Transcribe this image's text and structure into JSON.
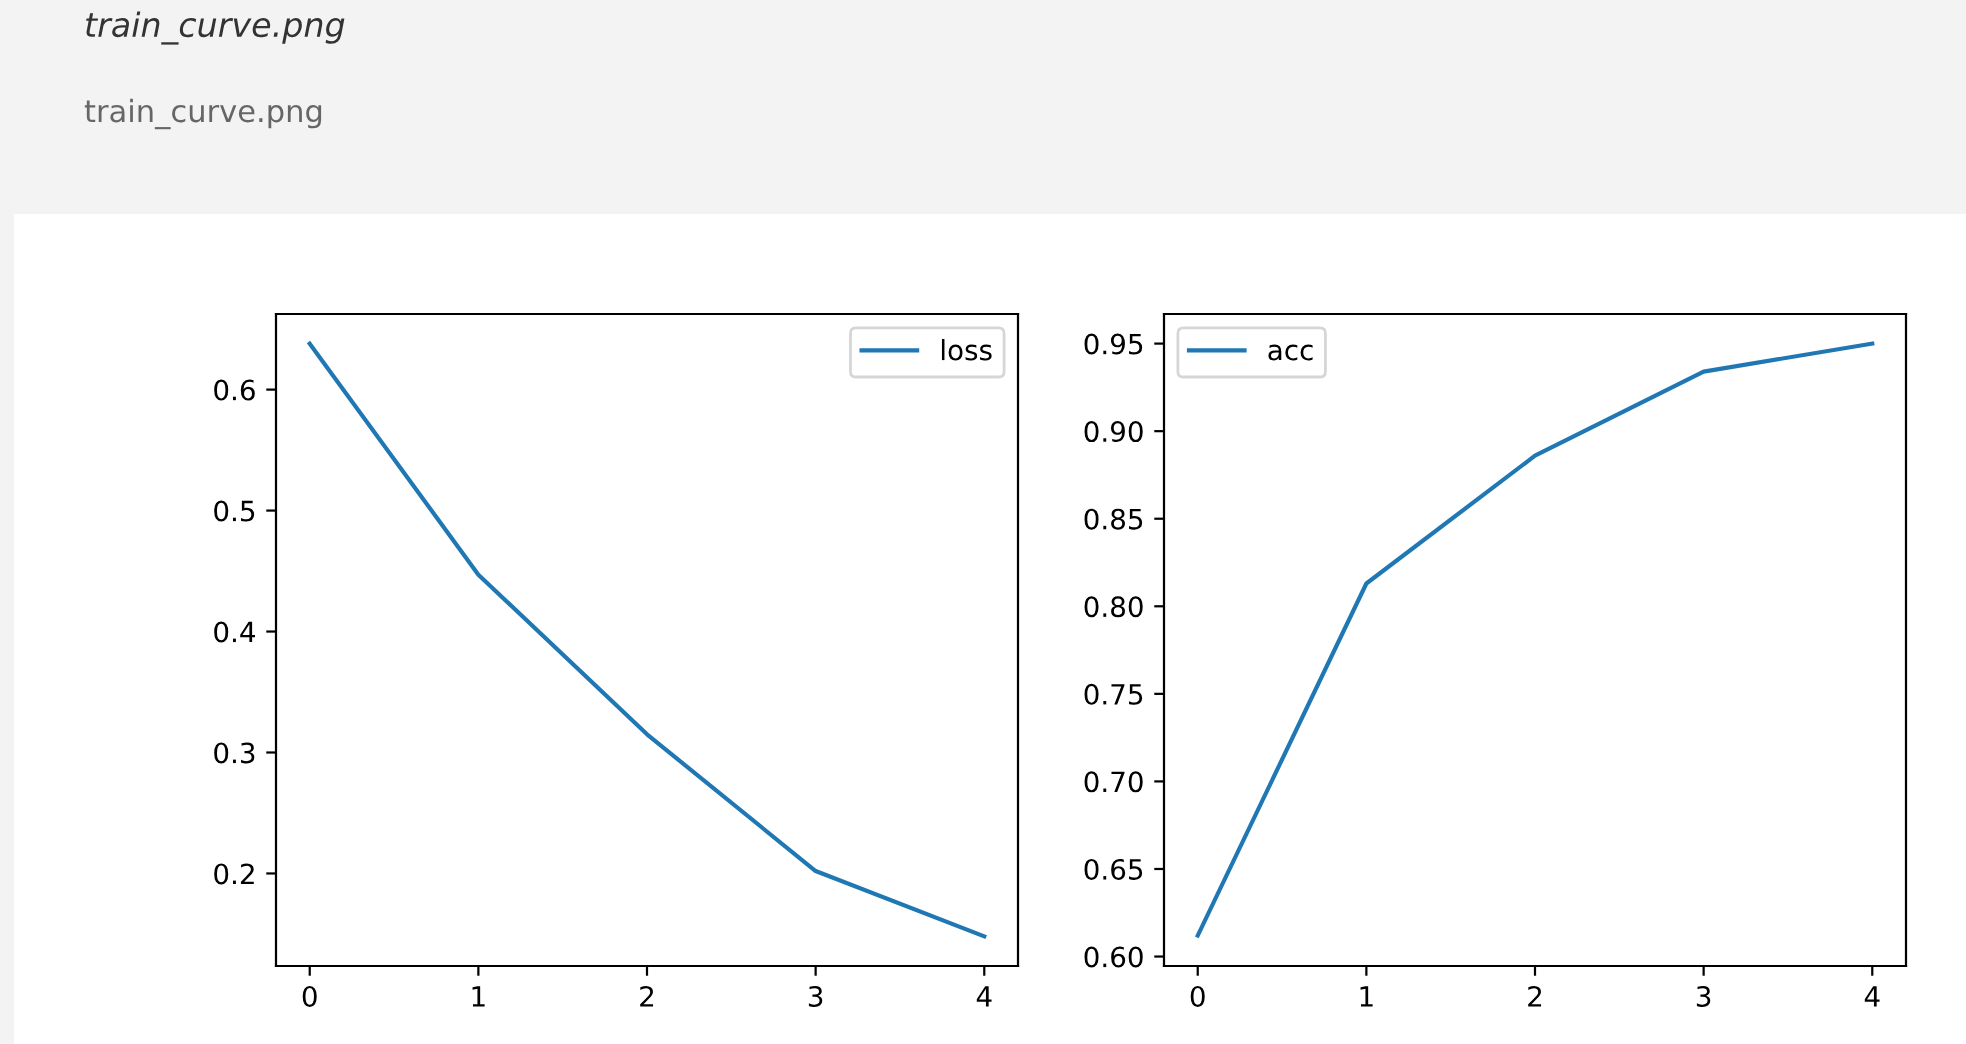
{
  "chart_data": [
    {
      "type": "line",
      "x": [
        0,
        1,
        2,
        3,
        4
      ],
      "series": [
        {
          "name": "loss",
          "color": "#1f77b4",
          "values": [
            0.638,
            0.447,
            0.315,
            0.202,
            0.148
          ]
        }
      ],
      "xlim": [
        -0.2,
        4.2
      ],
      "xticks": [
        0,
        1,
        2,
        3,
        4
      ],
      "ylim": [
        0.1235,
        0.6625
      ],
      "yticks": [
        0.2,
        0.3,
        0.4,
        0.5,
        0.6
      ],
      "legend": "top right",
      "grid": false,
      "annotations": [
        "train_curve.png",
        "train_curve.png"
      ]
    },
    {
      "type": "line",
      "x": [
        0,
        1,
        2,
        3,
        4
      ],
      "series": [
        {
          "name": "acc",
          "color": "#1f77b4",
          "values": [
            0.612,
            0.813,
            0.886,
            0.934,
            0.95
          ]
        }
      ],
      "xlim": [
        -0.2,
        4.2
      ],
      "xticks": [
        0,
        1,
        2,
        3,
        4
      ],
      "ylim": [
        0.5946,
        0.9669
      ],
      "yticks": [
        {
          "value": 0.6,
          "label": "0.60"
        },
        0.65,
        {
          "value": 0.7,
          "label": "0.70"
        },
        0.75,
        {
          "value": 0.8,
          "label": "0.80"
        },
        0.85,
        {
          "value": 0.9,
          "label": "0.90"
        },
        0.95
      ],
      "legend": "top left",
      "grid": false
    }
  ]
}
